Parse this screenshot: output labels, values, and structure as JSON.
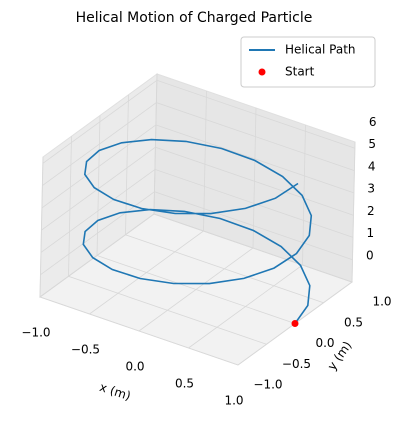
{
  "chart_data": {
    "type": "line3d",
    "title": "Helical Motion of Charged Particle",
    "xlabel": "x (m)",
    "ylabel": "y (m)",
    "xlim": [
      -1,
      1
    ],
    "ylim": [
      -1,
      1
    ],
    "zlim": [
      0,
      6.283
    ],
    "xticks": [
      {
        "value": -1,
        "label": "−1.0"
      },
      {
        "value": -0.5,
        "label": "−0.5"
      },
      {
        "value": 0,
        "label": "0.0"
      },
      {
        "value": 0.5,
        "label": "0.5"
      },
      {
        "value": 1,
        "label": "1.0"
      }
    ],
    "yticks": [
      {
        "value": -1,
        "label": "−1.0"
      },
      {
        "value": -0.5,
        "label": "−0.5"
      },
      {
        "value": 0,
        "label": "0.0"
      },
      {
        "value": 0.5,
        "label": "0.5"
      },
      {
        "value": 1,
        "label": "1.0"
      }
    ],
    "zticks": [
      0,
      1,
      2,
      3,
      4,
      5,
      6
    ],
    "grid": true,
    "legend": "upper right",
    "series": [
      {
        "name": "Helical Path",
        "color": "#1f77b4",
        "style": "line",
        "x": [
          1,
          0.951,
          0.809,
          0.588,
          0.309,
          0,
          -0.309,
          -0.588,
          -0.809,
          -0.951,
          -1,
          -0.951,
          -0.809,
          -0.588,
          -0.309,
          0,
          0.309,
          0.588,
          0.809,
          0.951,
          1,
          0.951,
          0.809,
          0.588,
          0.309,
          0,
          -0.309,
          -0.588,
          -0.809,
          -0.951,
          -1,
          -0.951,
          -0.809,
          -0.588,
          -0.309,
          0,
          0.309,
          0.588,
          0.809,
          0.951,
          1
        ],
        "y": [
          0,
          0.309,
          0.588,
          0.809,
          0.951,
          1,
          0.951,
          0.809,
          0.588,
          0.309,
          0,
          -0.309,
          -0.588,
          -0.809,
          -0.951,
          -1,
          -0.951,
          -0.809,
          -0.588,
          -0.309,
          0,
          0.309,
          0.588,
          0.809,
          0.951,
          1,
          0.951,
          0.809,
          0.588,
          0.309,
          0,
          -0.309,
          -0.588,
          -0.809,
          -0.951,
          -1,
          -0.951,
          -0.809,
          -0.588,
          -0.309,
          0
        ],
        "z": [
          0,
          0.157,
          0.314,
          0.471,
          0.628,
          0.785,
          0.942,
          1.1,
          1.257,
          1.414,
          1.571,
          1.728,
          1.885,
          2.042,
          2.199,
          2.356,
          2.513,
          2.67,
          2.827,
          2.985,
          3.142,
          3.299,
          3.456,
          3.613,
          3.77,
          3.927,
          4.084,
          4.241,
          4.398,
          4.555,
          4.712,
          4.869,
          5.027,
          5.184,
          5.341,
          5.498,
          5.655,
          5.812,
          5.969,
          6.126,
          6.283
        ]
      },
      {
        "name": "Start",
        "color": "red",
        "style": "point",
        "x": [
          1
        ],
        "y": [
          0
        ],
        "z": [
          0
        ]
      }
    ]
  }
}
